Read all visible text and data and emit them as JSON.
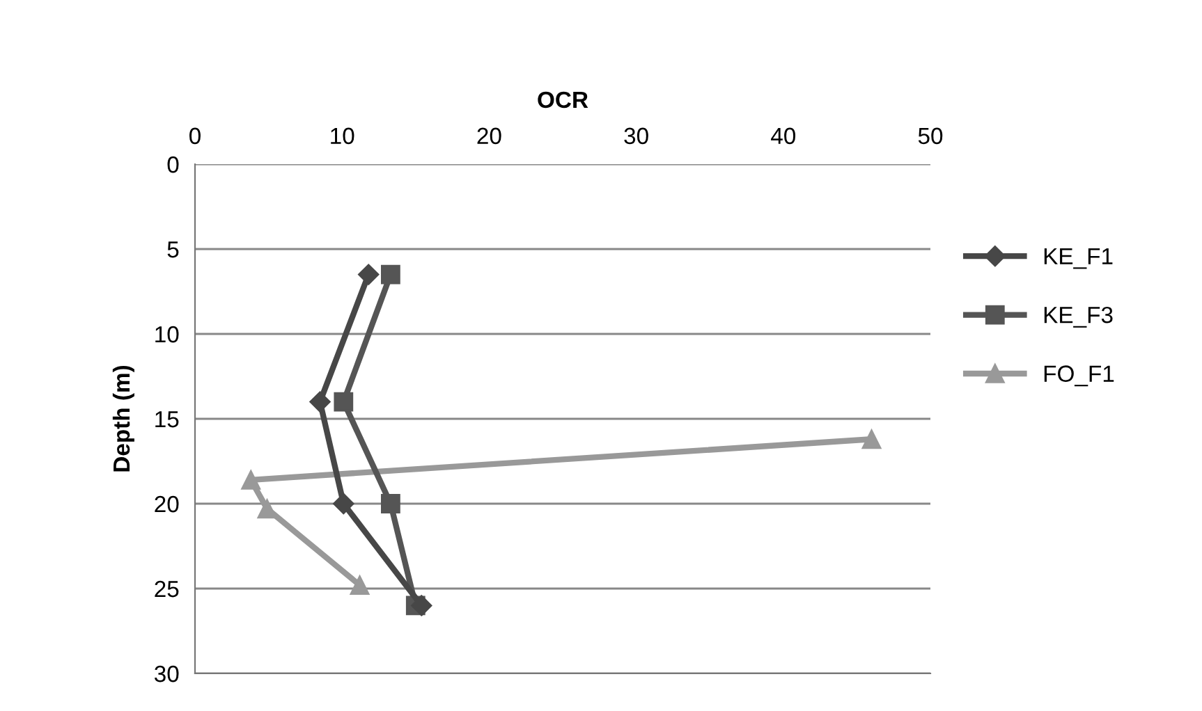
{
  "chart_data": {
    "type": "line",
    "xlabel": "OCR",
    "ylabel": "Depth (m)",
    "xlim": [
      0,
      50
    ],
    "xticks": [
      0,
      10,
      20,
      30,
      40,
      50
    ],
    "ylim": [
      30,
      0
    ],
    "yticks": [
      0,
      5,
      10,
      15,
      20,
      25,
      30
    ],
    "grid": "y",
    "legend": "right",
    "series": [
      {
        "name": "KE_F1",
        "color": "#474747",
        "marker": "diamond",
        "x": [
          11.8,
          8.5,
          10.1,
          15.4
        ],
        "values": [
          6.5,
          14,
          20,
          26
        ]
      },
      {
        "name": "KE_F3",
        "color": "#555555",
        "marker": "square",
        "x": [
          13.3,
          10.1,
          13.3,
          15.0
        ],
        "values": [
          6.5,
          14,
          20,
          26
        ]
      },
      {
        "name": "FO_F1",
        "color": "#999999",
        "marker": "triangle",
        "x": [
          46.0,
          3.8,
          4.9,
          11.2
        ],
        "values": [
          16.2,
          18.6,
          20.3,
          24.8
        ]
      }
    ]
  }
}
